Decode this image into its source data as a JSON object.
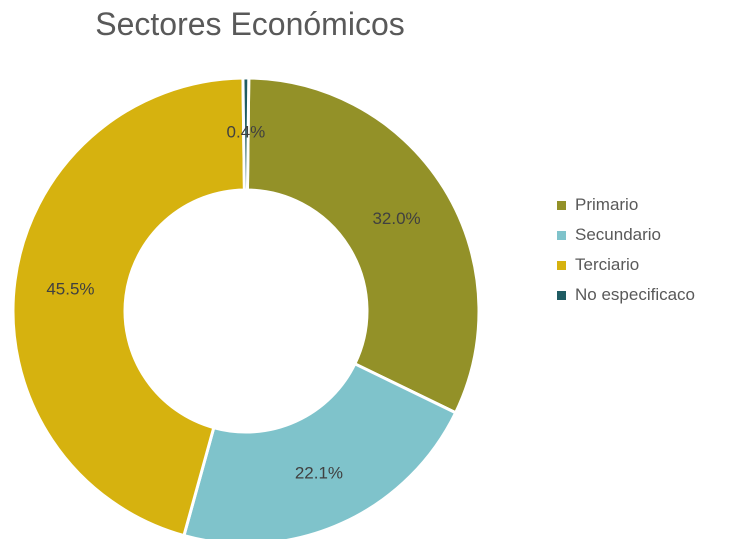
{
  "chart_data": {
    "type": "pie",
    "variant": "donut",
    "title": "Sectores Económicos",
    "categories": [
      "Primario",
      "Secundario",
      "Terciario",
      "No especificaco"
    ],
    "values": [
      32.0,
      22.1,
      45.5,
      0.4
    ],
    "labels": [
      "32.0%",
      "22.1%",
      "45.5%",
      "0.4%"
    ],
    "colors": [
      "#939128",
      "#7fc3cb",
      "#d6b20f",
      "#1f5c63"
    ],
    "legend_position": "right"
  }
}
